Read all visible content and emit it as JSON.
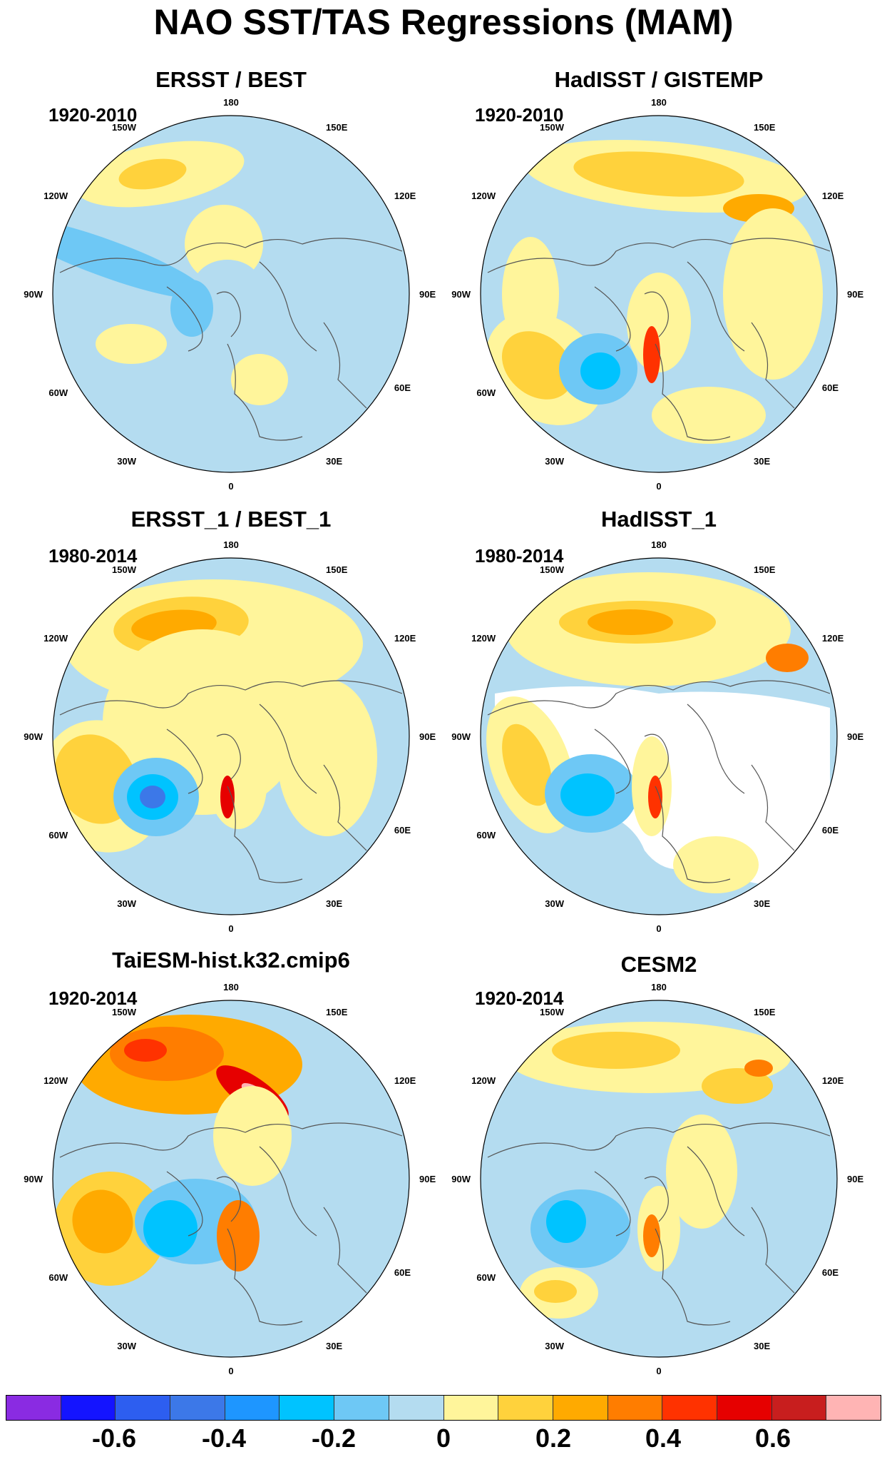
{
  "main_title": "NAO SST/TAS Regressions (MAM)",
  "panels": [
    {
      "title": "ERSST / BEST",
      "period": "1920-2010"
    },
    {
      "title": "HadISST / GISTEMP",
      "period": "1920-2010"
    },
    {
      "title": "ERSST_1 / BEST_1",
      "period": "1980-2014"
    },
    {
      "title": "HadISST_1",
      "period": "1980-2014"
    },
    {
      "title": "TaiESM-hist.k32.cmip6",
      "period": "1920-2014"
    },
    {
      "title": "CESM2",
      "period": "1920-2014"
    }
  ],
  "lon_labels": [
    "180",
    "150E",
    "120E",
    "90E",
    "60E",
    "30E",
    "0",
    "30W",
    "60W",
    "90W",
    "120W",
    "150W"
  ],
  "colorbar": {
    "colors": [
      "#8a2be2",
      "#1414ff",
      "#2d5ef0",
      "#3c78e8",
      "#1e96ff",
      "#00c3ff",
      "#6ec8f5",
      "#b4dcf0",
      "#fff59b",
      "#ffd23c",
      "#ffaa00",
      "#ff7d00",
      "#ff3200",
      "#e60000",
      "#c81e1e",
      "#ffb4b4"
    ],
    "labels": [
      "-0.6",
      "-0.4",
      "-0.2",
      "0",
      "0.2",
      "0.4",
      "0.6"
    ]
  },
  "chart_data": {
    "type": "heatmap",
    "projection": "north polar stereographic",
    "title": "NAO SST/TAS Regressions (MAM)",
    "colorbar_levels": [
      "-0.6",
      "-0.4",
      "-0.2",
      "0",
      "0.2",
      "0.4",
      "0.6"
    ],
    "panels": [
      {
        "name": "ERSST / BEST",
        "period": "1920-2010"
      },
      {
        "name": "HadISST / GISTEMP",
        "period": "1920-2010"
      },
      {
        "name": "ERSST_1 / BEST_1",
        "period": "1980-2014"
      },
      {
        "name": "HadISST_1",
        "period": "1980-2014"
      },
      {
        "name": "TaiESM-hist.k32.cmip6",
        "period": "1920-2014"
      },
      {
        "name": "CESM2",
        "period": "1920-2014"
      }
    ]
  }
}
